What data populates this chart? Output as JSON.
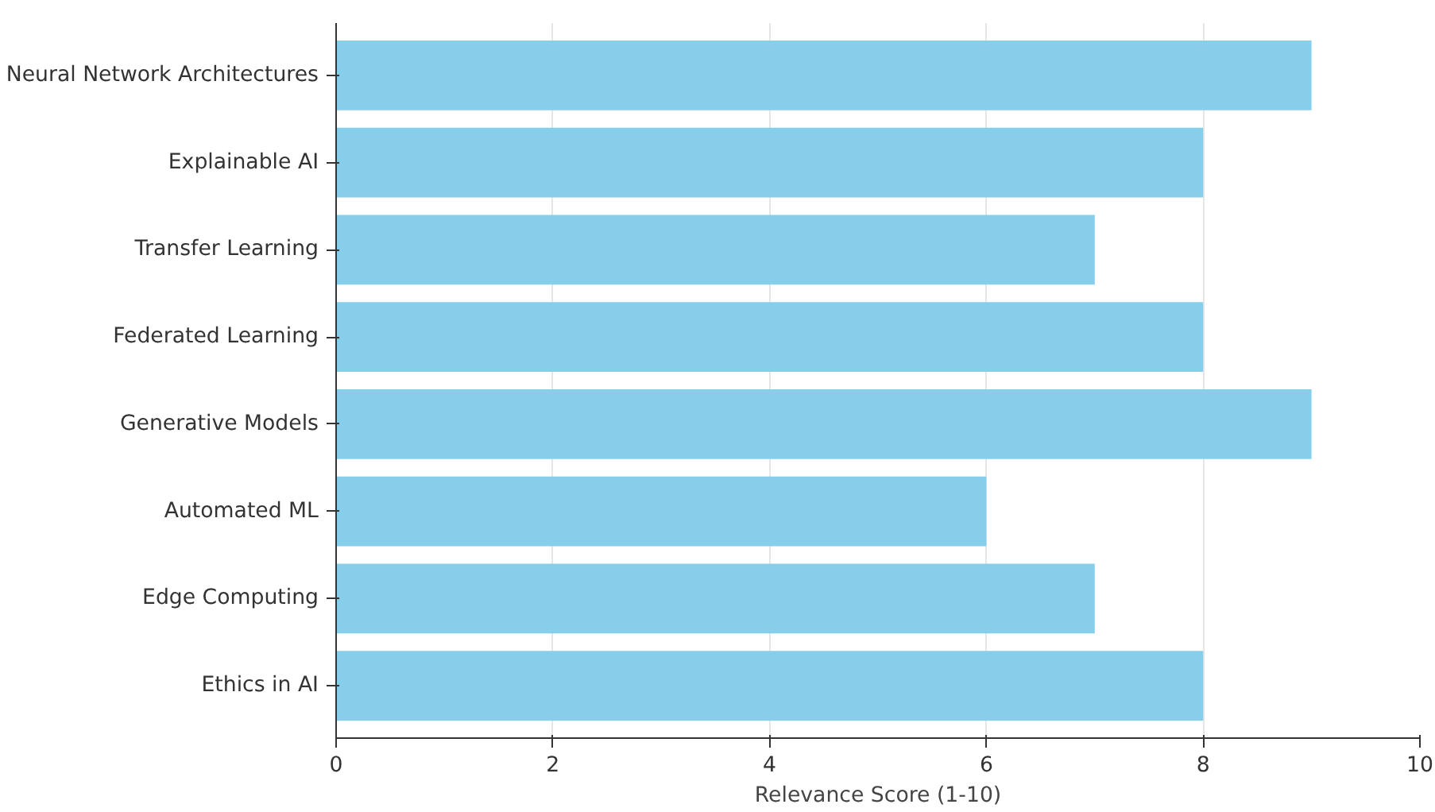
{
  "chart_data": {
    "type": "bar",
    "orientation": "horizontal",
    "xlabel": "Relevance Score (1-10)",
    "categories": [
      "Neural Network Architectures",
      "Explainable AI",
      "Transfer Learning",
      "Federated Learning",
      "Generative Models",
      "Automated ML",
      "Edge Computing",
      "Ethics in AI"
    ],
    "values": [
      9,
      8,
      7,
      8,
      9,
      6,
      7,
      8
    ],
    "color": "#87ceeb",
    "xlim": [
      0,
      10
    ],
    "xticks": [
      0,
      2,
      4,
      6,
      8,
      10
    ],
    "grid": "x"
  }
}
